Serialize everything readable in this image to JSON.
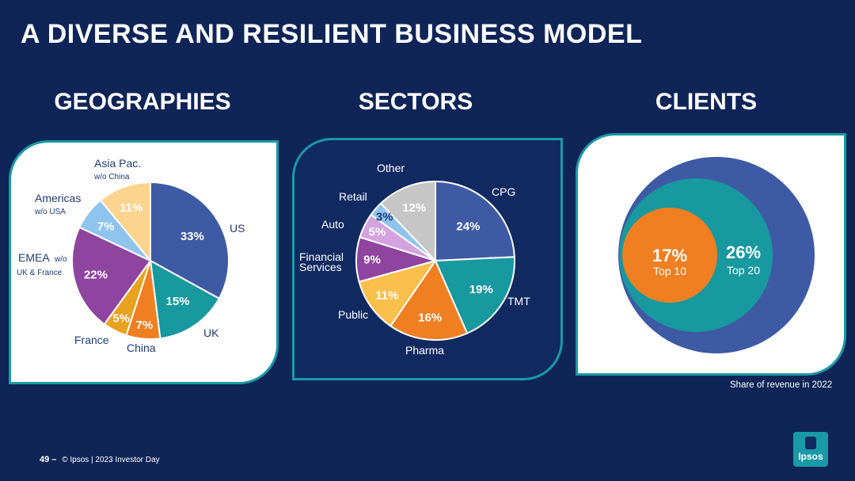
{
  "title": "A DIVERSE AND RESILIENT BUSINESS MODEL",
  "sections": {
    "geographies": "GEOGRAPHIES",
    "sectors": "SECTORS",
    "clients": "CLIENTS"
  },
  "chart_data": [
    {
      "type": "pie",
      "title": "GEOGRAPHIES",
      "categories": [
        "US",
        "UK",
        "China",
        "France",
        "EMEA w/o UK & France",
        "Americas w/o USA",
        "Asia Pac. w/o China"
      ],
      "values": [
        33,
        15,
        7,
        5,
        22,
        7,
        11
      ],
      "value_labels": [
        "33%",
        "15%",
        "7%",
        "5%",
        "22%",
        "7%",
        "11%"
      ],
      "colors": [
        "#3f5aa5",
        "#17999f",
        "#f07f22",
        "#e8a21f",
        "#8f44a0",
        "#8fc4ee",
        "#fdd48e"
      ]
    },
    {
      "type": "pie",
      "title": "SECTORS",
      "categories": [
        "CPG",
        "TMT",
        "Pharma",
        "Public",
        "Financial Services",
        "Auto",
        "Retail",
        "Other"
      ],
      "values": [
        24,
        19,
        16,
        11,
        9,
        5,
        3,
        12
      ],
      "value_labels": [
        "24%",
        "19%",
        "16%",
        "11%",
        "9%",
        "5%",
        "3%",
        "12%"
      ],
      "colors": [
        "#3f5aa5",
        "#17999f",
        "#f07f22",
        "#fbbf4c",
        "#8f44a0",
        "#d4a3e0",
        "#8fc4ee",
        "#c6c6c6"
      ]
    },
    {
      "type": "nested-circles",
      "title": "CLIENTS",
      "categories": [
        "Top 10",
        "Top 20"
      ],
      "values": [
        17,
        26
      ],
      "value_labels": [
        "17%",
        "26%"
      ],
      "colors": [
        "#f07f22",
        "#17999f",
        "#3f5aa5"
      ]
    }
  ],
  "geo_labels": {
    "asia_main": "Asia Pac.",
    "asia_sub": "w/o China",
    "americas_main": "Americas",
    "americas_sub": "w/o USA",
    "emea_main": "EMEA",
    "emea_sub1": "w/o",
    "emea_sub2": "UK &  France",
    "us": "US",
    "uk": "UK",
    "france": "France",
    "china": "China"
  },
  "sector_labels": {
    "other": "Other",
    "retail": "Retail",
    "auto": "Auto",
    "financial1": "Financial",
    "financial2": "Services",
    "public": "Public",
    "pharma": "Pharma",
    "tmt": "TMT",
    "cpg": "CPG"
  },
  "clients_note": "Share of revenue in 2022",
  "footer": {
    "page": "49 –",
    "text": "© Ipsos | 2023 Investor Day"
  },
  "logo": "Ipsos"
}
